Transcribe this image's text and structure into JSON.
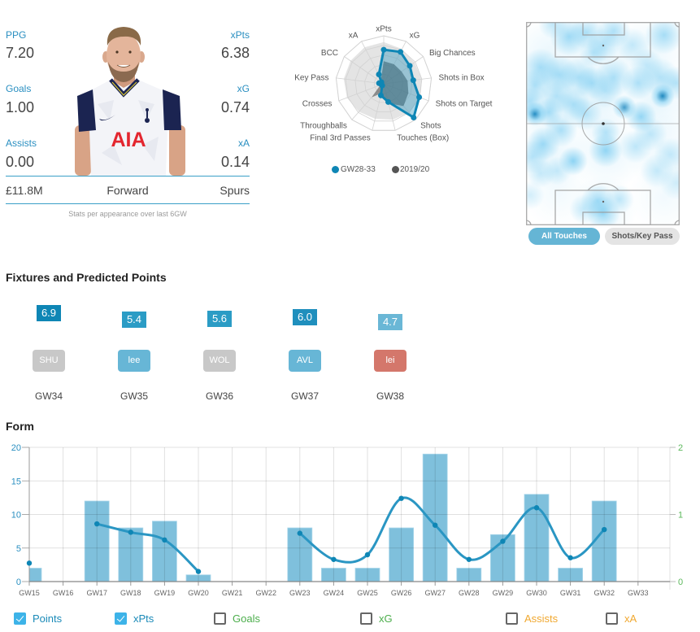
{
  "player": {
    "stats_left": [
      {
        "label": "PPG",
        "value": "7.20"
      },
      {
        "label": "Goals",
        "value": "1.00"
      },
      {
        "label": "Assists",
        "value": "0.00"
      }
    ],
    "stats_right": [
      {
        "label": "xPts",
        "value": "6.38"
      },
      {
        "label": "xG",
        "value": "0.74"
      },
      {
        "label": "xA",
        "value": "0.14"
      }
    ],
    "price": "£11.8M",
    "position": "Forward",
    "team": "Spurs",
    "footnote": "Stats per appearance over last 6GW",
    "shirt_sponsor": "AIA"
  },
  "radar": {
    "legend": [
      {
        "label": "GW28-33",
        "color": "#0e86b5"
      },
      {
        "label": "2019/20",
        "color": "#555555"
      }
    ]
  },
  "heatmap": {
    "buttons": [
      {
        "label": "All Touches",
        "active": true
      },
      {
        "label": "Shots/Key Pass",
        "active": false
      }
    ],
    "points": [
      [
        30,
        40,
        32,
        0.12
      ],
      [
        90,
        40,
        32,
        0.12
      ],
      [
        150,
        40,
        32,
        0.12
      ],
      [
        30,
        100,
        32,
        0.14
      ],
      [
        90,
        100,
        32,
        0.14
      ],
      [
        160,
        100,
        32,
        0.14
      ],
      [
        30,
        160,
        32,
        0.12
      ],
      [
        100,
        160,
        32,
        0.12
      ],
      [
        170,
        160,
        32,
        0.1
      ],
      [
        40,
        210,
        30,
        0.08
      ],
      [
        170,
        215,
        30,
        0.08
      ],
      [
        95,
        230,
        28,
        0.12
      ],
      [
        53,
        18,
        16,
        0.55
      ],
      [
        95,
        28,
        14,
        0.4
      ],
      [
        75,
        13,
        14,
        0.45
      ],
      [
        108,
        11,
        14,
        0.45
      ],
      [
        170,
        16,
        16,
        0.5
      ],
      [
        131,
        28,
        14,
        0.3
      ],
      [
        18,
        56,
        16,
        0.5
      ],
      [
        41,
        65,
        16,
        0.5
      ],
      [
        65,
        68,
        16,
        0.45
      ],
      [
        11,
        78,
        14,
        0.45
      ],
      [
        81,
        75,
        14,
        0.45
      ],
      [
        108,
        68,
        16,
        0.45
      ],
      [
        138,
        75,
        14,
        0.45
      ],
      [
        165,
        68,
        16,
        0.4
      ],
      [
        185,
        75,
        14,
        0.4
      ],
      [
        168,
        91,
        10,
        0.9
      ],
      [
        11,
        113,
        10,
        0.9
      ],
      [
        28,
        111,
        12,
        0.5
      ],
      [
        58,
        101,
        14,
        0.45
      ],
      [
        121,
        105,
        10,
        0.75
      ],
      [
        141,
        116,
        13,
        0.6
      ],
      [
        38,
        91,
        14,
        0.4
      ],
      [
        98,
        85,
        14,
        0.35
      ],
      [
        5,
        98,
        12,
        0.45
      ],
      [
        21,
        150,
        14,
        0.55
      ],
      [
        58,
        171,
        12,
        0.65
      ],
      [
        98,
        158,
        14,
        0.6
      ],
      [
        98,
        136,
        12,
        0.4
      ],
      [
        135,
        153,
        14,
        0.35
      ],
      [
        161,
        183,
        14,
        0.3
      ],
      [
        178,
        163,
        14,
        0.3
      ],
      [
        185,
        198,
        14,
        0.25
      ],
      [
        8,
        166,
        14,
        0.4
      ],
      [
        18,
        186,
        12,
        0.3
      ],
      [
        5,
        213,
        12,
        0.25
      ],
      [
        88,
        220,
        14,
        0.5
      ],
      [
        95,
        235,
        14,
        0.55
      ],
      [
        115,
        218,
        12,
        0.35
      ],
      [
        71,
        230,
        12,
        0.3
      ],
      [
        38,
        183,
        12,
        0.3
      ],
      [
        73,
        113,
        14,
        0.4
      ],
      [
        43,
        133,
        14,
        0.45
      ],
      [
        153,
        138,
        14,
        0.35
      ],
      [
        83,
        38,
        12,
        0.35
      ],
      [
        33,
        3,
        12,
        0.35
      ],
      [
        148,
        53,
        14,
        0.3
      ]
    ]
  },
  "fixtures": {
    "title": "Fixtures and Predicted Points",
    "items": [
      {
        "gw": "GW34",
        "opponent": "SHU",
        "predicted": "6.9",
        "xp_color": "#0e86b5",
        "badge_color": "#c8c8c8"
      },
      {
        "gw": "GW35",
        "opponent": "lee",
        "predicted": "5.4",
        "xp_color": "#2b9cc5",
        "badge_color": "#67b6d6"
      },
      {
        "gw": "GW36",
        "opponent": "WOL",
        "predicted": "5.6",
        "xp_color": "#2b9cc5",
        "badge_color": "#c8c8c8"
      },
      {
        "gw": "GW37",
        "opponent": "AVL",
        "predicted": "6.0",
        "xp_color": "#1f8fbd",
        "badge_color": "#67b6d6"
      },
      {
        "gw": "GW38",
        "opponent": "lei",
        "predicted": "4.7",
        "xp_color": "#6ab7d6",
        "badge_color": "#d4776b"
      }
    ]
  },
  "form": {
    "title": "Form",
    "legend": [
      {
        "label": "Points",
        "checked": true,
        "color": "#1a8ab8"
      },
      {
        "label": "xPts",
        "checked": true,
        "color": "#1a8ab8"
      },
      {
        "label": "Goals",
        "checked": false,
        "color": "#4cae4c"
      },
      {
        "label": "xG",
        "checked": false,
        "color": "#4cae4c"
      },
      {
        "label": "Assists",
        "checked": false,
        "color": "#f0a830"
      },
      {
        "label": "xA",
        "checked": false,
        "color": "#f0a830"
      }
    ]
  },
  "chart_data": [
    {
      "type": "radar",
      "title": "",
      "axes": [
        "xPts",
        "xG",
        "Big Chances",
        "Shots in Box",
        "Shots on Target",
        "Shots",
        "Touches (Box)",
        "Final 3rd Passes",
        "Throughballs",
        "Crosses",
        "Key Pass",
        "BCC",
        "xA"
      ],
      "range": [
        0,
        1
      ],
      "series": [
        {
          "name": "GW28-33",
          "color": "#0e86b5",
          "values": [
            0.71,
            0.75,
            0.66,
            0.62,
            0.79,
            0.94,
            0.39,
            0.25,
            0.05,
            0.05,
            0.1,
            0.06,
            0.22
          ]
        },
        {
          "name": "2019/20",
          "color": "#555555",
          "values": [
            0.47,
            0.46,
            0.45,
            0.5,
            0.55,
            0.62,
            0.42,
            0.2,
            0.38,
            0.08,
            0.1,
            0.1,
            0.12
          ]
        }
      ],
      "reference_band": [
        0.87,
        0.82,
        0.78,
        0.8,
        0.82,
        0.8,
        0.77,
        0.75,
        0.78,
        0.82,
        0.84,
        0.84,
        0.86
      ],
      "legend_position": "bottom"
    },
    {
      "type": "bar",
      "title": "Form",
      "categories": [
        "GW15",
        "GW16",
        "GW17",
        "GW18",
        "GW19",
        "GW20",
        "GW21",
        "GW22",
        "GW23",
        "GW24",
        "GW25",
        "GW26",
        "GW27",
        "GW28",
        "GW29",
        "GW30",
        "GW31",
        "GW32",
        "GW33"
      ],
      "series": [
        {
          "name": "Points",
          "type": "bar",
          "axis": "left",
          "color": "#7fc0dc",
          "values": [
            2,
            null,
            12,
            8,
            9,
            1,
            null,
            null,
            8,
            2,
            2,
            8,
            19,
            2,
            7,
            13,
            2,
            12,
            null
          ]
        },
        {
          "name": "xPts",
          "type": "line",
          "axis": "left",
          "color": "#2a96c3",
          "values": [
            2.75,
            null,
            8.6,
            7.35,
            6.2,
            1.5,
            null,
            null,
            7.2,
            3.3,
            4.0,
            12.4,
            8.4,
            3.3,
            6.0,
            11.0,
            3.55,
            7.75,
            null
          ]
        }
      ],
      "xlabel": "",
      "ylabel": "",
      "ylim": [
        0,
        20
      ],
      "yticks": [
        0,
        5,
        10,
        15,
        20
      ],
      "y2lim": [
        0,
        2
      ],
      "y2ticks": [
        0,
        1,
        2
      ],
      "grid": true,
      "legend_position": "bottom"
    }
  ]
}
